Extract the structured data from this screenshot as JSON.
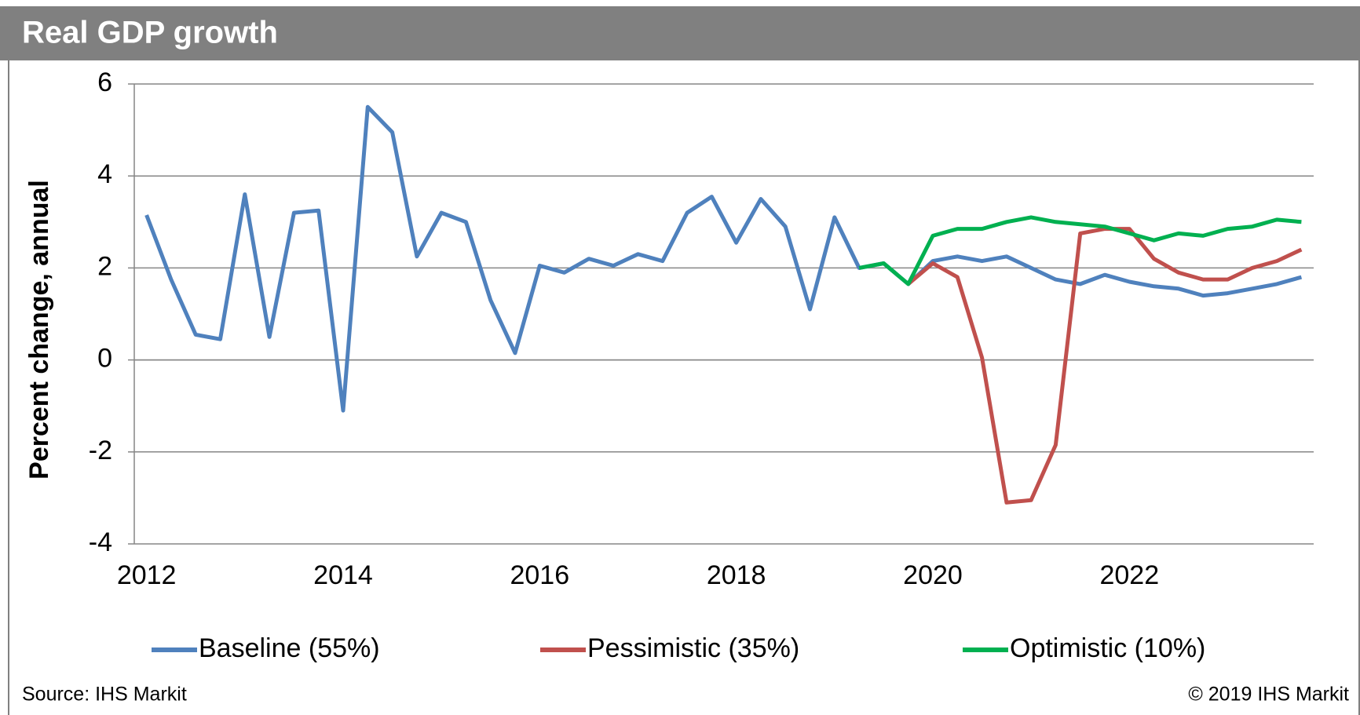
{
  "chart_data": {
    "type": "line",
    "title": "Real GDP growth",
    "y_label": "Percent change, annual",
    "source": "Source: IHS Markit",
    "copyright": "© 2019 IHS Markit",
    "x": [
      2012,
      2012.25,
      2012.5,
      2012.75,
      2013,
      2013.25,
      2013.5,
      2013.75,
      2014,
      2014.25,
      2014.5,
      2014.75,
      2015,
      2015.25,
      2015.5,
      2015.75,
      2016,
      2016.25,
      2016.5,
      2016.75,
      2017,
      2017.25,
      2017.5,
      2017.75,
      2018,
      2018.25,
      2018.5,
      2018.75,
      2019,
      2019.25,
      2019.5,
      2019.75,
      2020,
      2020.25,
      2020.5,
      2020.75,
      2021,
      2021.25,
      2021.5,
      2021.75,
      2022,
      2022.25,
      2022.5,
      2022.75,
      2023,
      2023.25,
      2023.5,
      2023.75
    ],
    "series": [
      {
        "name": "Baseline (55%)",
        "color": "#4f81bd",
        "values": [
          3.15,
          1.75,
          0.55,
          0.45,
          3.6,
          0.5,
          3.2,
          3.25,
          -1.1,
          5.5,
          4.95,
          2.25,
          3.2,
          3.0,
          1.3,
          0.15,
          2.05,
          1.9,
          2.2,
          2.05,
          2.3,
          2.15,
          3.2,
          3.55,
          2.55,
          3.5,
          2.9,
          1.1,
          3.1,
          2.0,
          2.1,
          1.65,
          2.15,
          2.25,
          2.15,
          2.25,
          2.0,
          1.75,
          1.65,
          1.85,
          1.7,
          1.6,
          1.55,
          1.4,
          1.45,
          1.55,
          1.65,
          1.8
        ]
      },
      {
        "name": "Pessimistic (35%)",
        "color": "#c0504d",
        "values": [
          null,
          null,
          null,
          null,
          null,
          null,
          null,
          null,
          null,
          null,
          null,
          null,
          null,
          null,
          null,
          null,
          null,
          null,
          null,
          null,
          null,
          null,
          null,
          null,
          null,
          null,
          null,
          null,
          null,
          null,
          null,
          1.65,
          2.1,
          1.8,
          0.05,
          -3.1,
          -3.05,
          -1.85,
          2.75,
          2.85,
          2.85,
          2.2,
          1.9,
          1.75,
          1.75,
          2.0,
          2.15,
          2.4
        ]
      },
      {
        "name": "Optimistic (10%)",
        "color": "#00b050",
        "values": [
          null,
          null,
          null,
          null,
          null,
          null,
          null,
          null,
          null,
          null,
          null,
          null,
          null,
          null,
          null,
          null,
          null,
          null,
          null,
          null,
          null,
          null,
          null,
          null,
          null,
          null,
          null,
          null,
          null,
          2.0,
          2.1,
          1.65,
          2.7,
          2.85,
          2.85,
          3.0,
          3.1,
          3.0,
          2.95,
          2.9,
          2.75,
          2.6,
          2.75,
          2.7,
          2.85,
          2.9,
          3.05,
          3.0
        ]
      }
    ],
    "xlim": [
      2011.875,
      2023.875
    ],
    "xticks": [
      2012,
      2014,
      2016,
      2018,
      2020,
      2022
    ],
    "ylim": [
      -4,
      6
    ],
    "yticks": [
      -4,
      -2,
      0,
      2,
      4,
      6
    ],
    "grid": true,
    "legend": "bottom"
  }
}
